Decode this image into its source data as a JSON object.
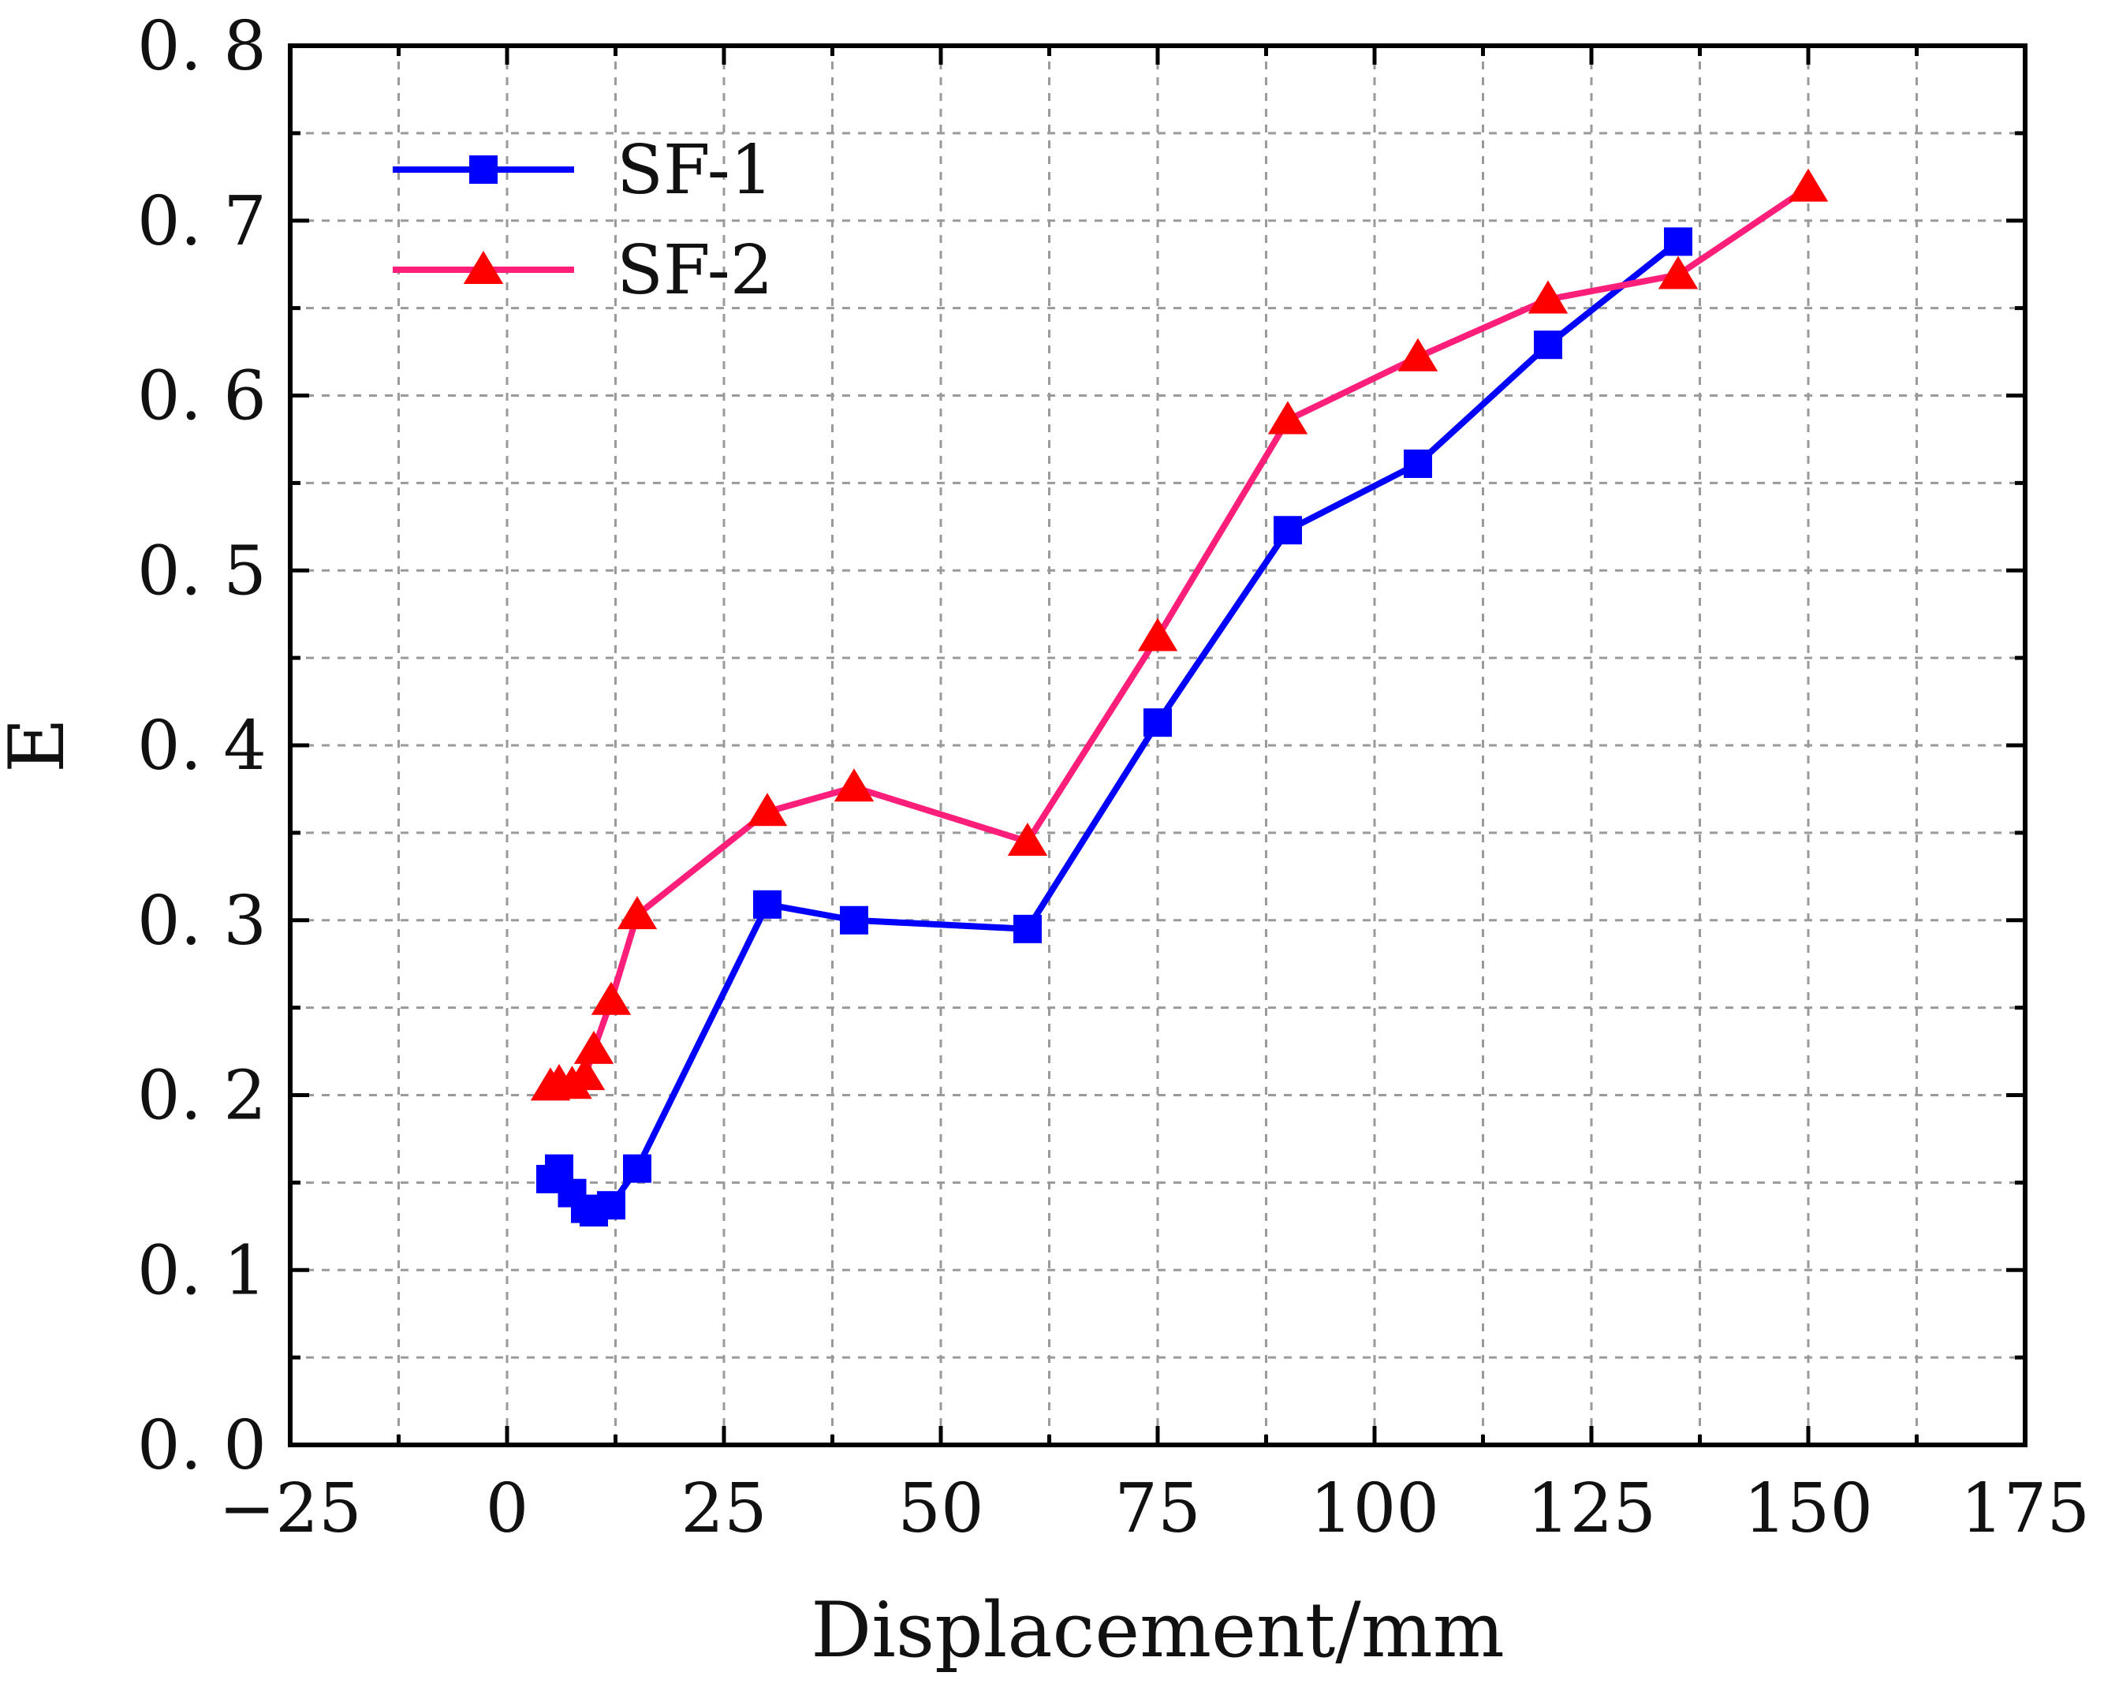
{
  "chart_data": {
    "type": "line",
    "title": "",
    "xlabel": "Displacement/mm",
    "ylabel": "E",
    "xlim": [
      -25,
      175
    ],
    "ylim": [
      0.0,
      0.8
    ],
    "xticks": [
      -25,
      0,
      25,
      50,
      75,
      100,
      125,
      150,
      175
    ],
    "yticks": [
      0.0,
      0.1,
      0.2,
      0.3,
      0.4,
      0.5,
      0.6,
      0.7,
      0.8
    ],
    "xtick_labels": [
      "−25",
      "0",
      "25",
      "50",
      "75",
      "100",
      "125",
      "150",
      "175"
    ],
    "ytick_labels": [
      "0. 0",
      "0. 1",
      "0. 2",
      "0. 3",
      "0. 4",
      "0. 5",
      "0. 6",
      "0. 7",
      "0. 8"
    ],
    "grid": true,
    "legend_position": "top-left",
    "series": [
      {
        "name": "SF-1",
        "color": "#0000ff",
        "marker": "square",
        "x": [
          5,
          6,
          7.5,
          9,
          10,
          12,
          15,
          30,
          40,
          60,
          75,
          90,
          105,
          120,
          135
        ],
        "y": [
          0.152,
          0.158,
          0.144,
          0.135,
          0.133,
          0.137,
          0.158,
          0.309,
          0.3,
          0.295,
          0.413,
          0.523,
          0.561,
          0.629,
          0.688
        ]
      },
      {
        "name": "SF-2",
        "color": "#ff1f7a",
        "marker_color": "#ff0000",
        "marker": "triangle",
        "x": [
          5,
          6,
          7.5,
          9,
          10,
          12,
          15,
          30,
          40,
          60,
          75,
          90,
          105,
          120,
          135,
          150
        ],
        "y": [
          0.205,
          0.207,
          0.206,
          0.211,
          0.226,
          0.254,
          0.303,
          0.362,
          0.376,
          0.345,
          0.462,
          0.586,
          0.622,
          0.655,
          0.669,
          0.719
        ]
      }
    ]
  }
}
